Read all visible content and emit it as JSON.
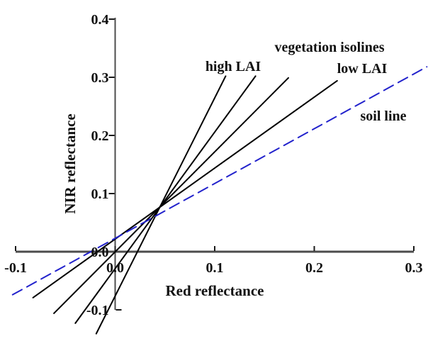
{
  "colors": {
    "background": "#ffffff",
    "axis": "#4d4d4d",
    "tick": "#1a1a1a",
    "text": "#111111",
    "isoline": "#000000",
    "soil_line": "#2222cc"
  },
  "chart_data": {
    "type": "line",
    "title": "",
    "xlabel": "Red reflectance",
    "ylabel": "NIR reflectance",
    "xlim": [
      -0.1,
      0.3
    ],
    "ylim": [
      -0.1,
      0.4
    ],
    "grid": false,
    "legend": false,
    "x_ticks": [
      -0.1,
      0,
      0.1,
      0.2,
      0.3
    ],
    "x_tick_labels": [
      "-0.1",
      "0.0",
      "0.1",
      "0.2",
      "0.3"
    ],
    "y_ticks": [
      0.4,
      0.3,
      0.2,
      0.1,
      0,
      -0.1
    ],
    "y_tick_labels": [
      "0.4",
      "0.3",
      "0.2",
      "0.1",
      "0.0",
      "-0.1"
    ],
    "convergence_point": [
      0.045,
      0.077
    ],
    "series": [
      {
        "id": "isoline-high-lai",
        "name": "vegetation isoline (high LAI, steepest)",
        "style": "solid",
        "color": "#000000",
        "points": [
          [
            -0.019,
            -0.141
          ],
          [
            0.111,
            0.302
          ]
        ]
      },
      {
        "id": "isoline-2",
        "name": "vegetation isoline",
        "style": "solid",
        "color": "#000000",
        "points": [
          [
            -0.04,
            -0.123
          ],
          [
            0.141,
            0.302
          ]
        ]
      },
      {
        "id": "isoline-3",
        "name": "vegetation isoline",
        "style": "solid",
        "color": "#000000",
        "points": [
          [
            -0.0615,
            -0.106
          ],
          [
            0.174,
            0.299
          ]
        ]
      },
      {
        "id": "isoline-low-lai",
        "name": "vegetation isoline (low LAI, shallowest)",
        "style": "solid",
        "color": "#000000",
        "points": [
          [
            -0.0825,
            -0.079
          ],
          [
            0.223,
            0.294
          ]
        ]
      },
      {
        "id": "soil-line",
        "name": "soil line",
        "style": "dashed",
        "color": "#2222cc",
        "points": [
          [
            -0.103,
            -0.074
          ],
          [
            0.313,
            0.318
          ]
        ]
      }
    ],
    "annotations": [
      {
        "id": "vegetation-isolines",
        "text": "vegetation isolines"
      },
      {
        "id": "high-lai",
        "text": "high LAI"
      },
      {
        "id": "low-lai",
        "text": "low LAI"
      },
      {
        "id": "soil-line",
        "text": "soil line"
      }
    ]
  }
}
